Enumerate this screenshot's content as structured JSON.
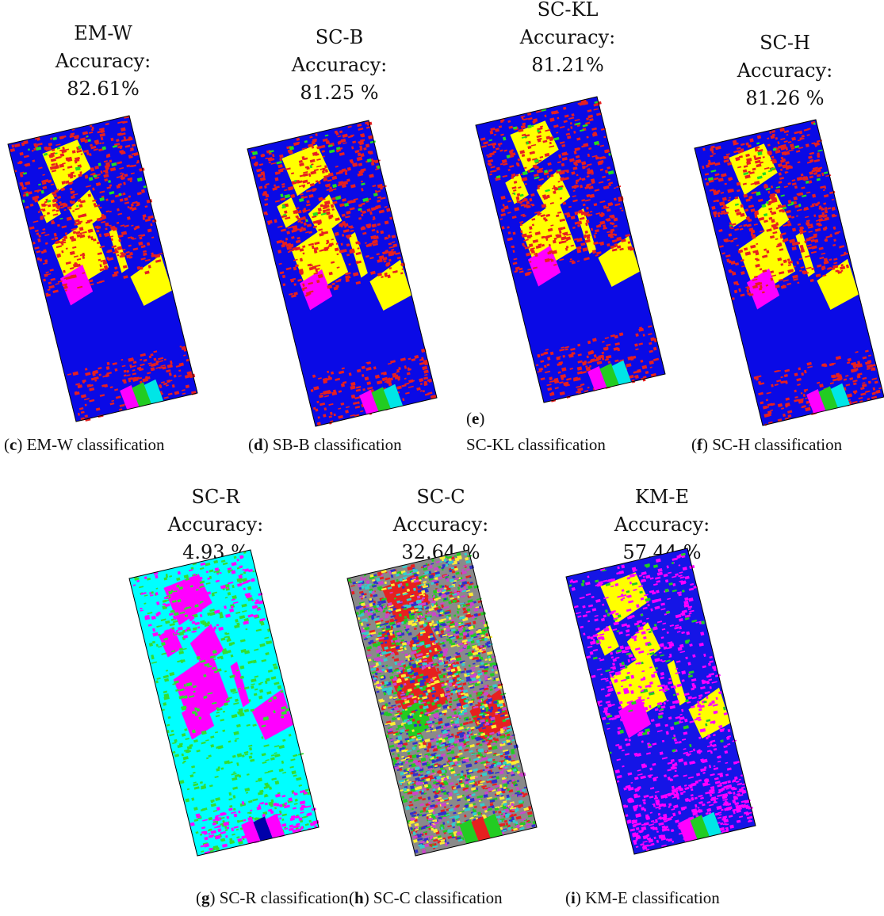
{
  "panels": [
    {
      "title": "EM-W",
      "accuracy_label": "Accuracy:",
      "accuracy": "82.61%",
      "caption": [
        "(",
        "c",
        ") EM-W classification"
      ]
    },
    {
      "title": "SC-B",
      "accuracy_label": "Accuracy:",
      "accuracy": "81.25 %",
      "caption": [
        "(",
        "d",
        ") SB-B classification"
      ]
    },
    {
      "title": "SC-KL",
      "accuracy_label": "Accuracy:",
      "accuracy": "81.21%",
      "caption": [
        "(",
        "e",
        ")",
        "SC-KL classification"
      ]
    },
    {
      "title": "SC-H",
      "accuracy_label": "Accuracy:",
      "accuracy": "81.26 %",
      "caption": [
        "(",
        "f",
        ") SC-H classification"
      ]
    },
    {
      "title": "SC-R",
      "accuracy_label": "Accuracy:",
      "accuracy": "4.93 %",
      "caption": [
        "(",
        "g",
        ") SC-R classification"
      ]
    },
    {
      "title": "SC-C",
      "accuracy_label": "Accuracy:",
      "accuracy": "32.64 %",
      "caption": [
        "(",
        "h",
        ") SC-C classification"
      ]
    },
    {
      "title": "KM-E",
      "accuracy_label": "Accuracy:",
      "accuracy": "57.44 %",
      "caption": [
        "(",
        "i",
        ") KM-E classification"
      ]
    }
  ]
}
